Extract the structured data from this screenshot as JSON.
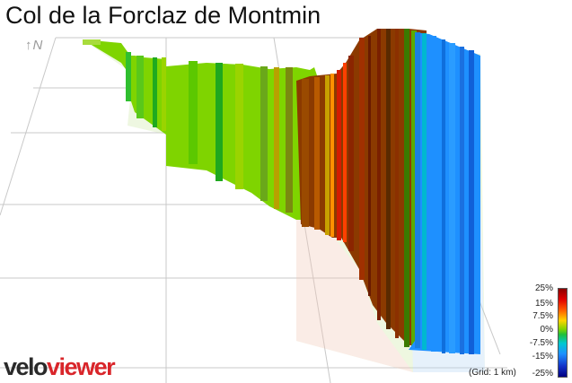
{
  "title": "Col de la Forclaz de Montmin",
  "north_label": "↑N",
  "logo": {
    "part1": "velo",
    "part2": "viewer",
    "color_part1": "#2a2a2a",
    "color_part2": "#d9252a"
  },
  "gradient_legend": {
    "labels": [
      "25%",
      "15%",
      "7.5%",
      "0%",
      "-7.5%",
      "-15%",
      "-25%"
    ],
    "colors": [
      "#8b0000",
      "#ff0000",
      "#ff8c00",
      "#7fd400",
      "#00c8d0",
      "#1e90ff",
      "#000080"
    ]
  },
  "grid_note": "(Grid: 1 km)",
  "colors": {
    "climb_steep": "#8b2500",
    "climb_moderate": "#7fd400",
    "descent": "#1e90ff"
  }
}
